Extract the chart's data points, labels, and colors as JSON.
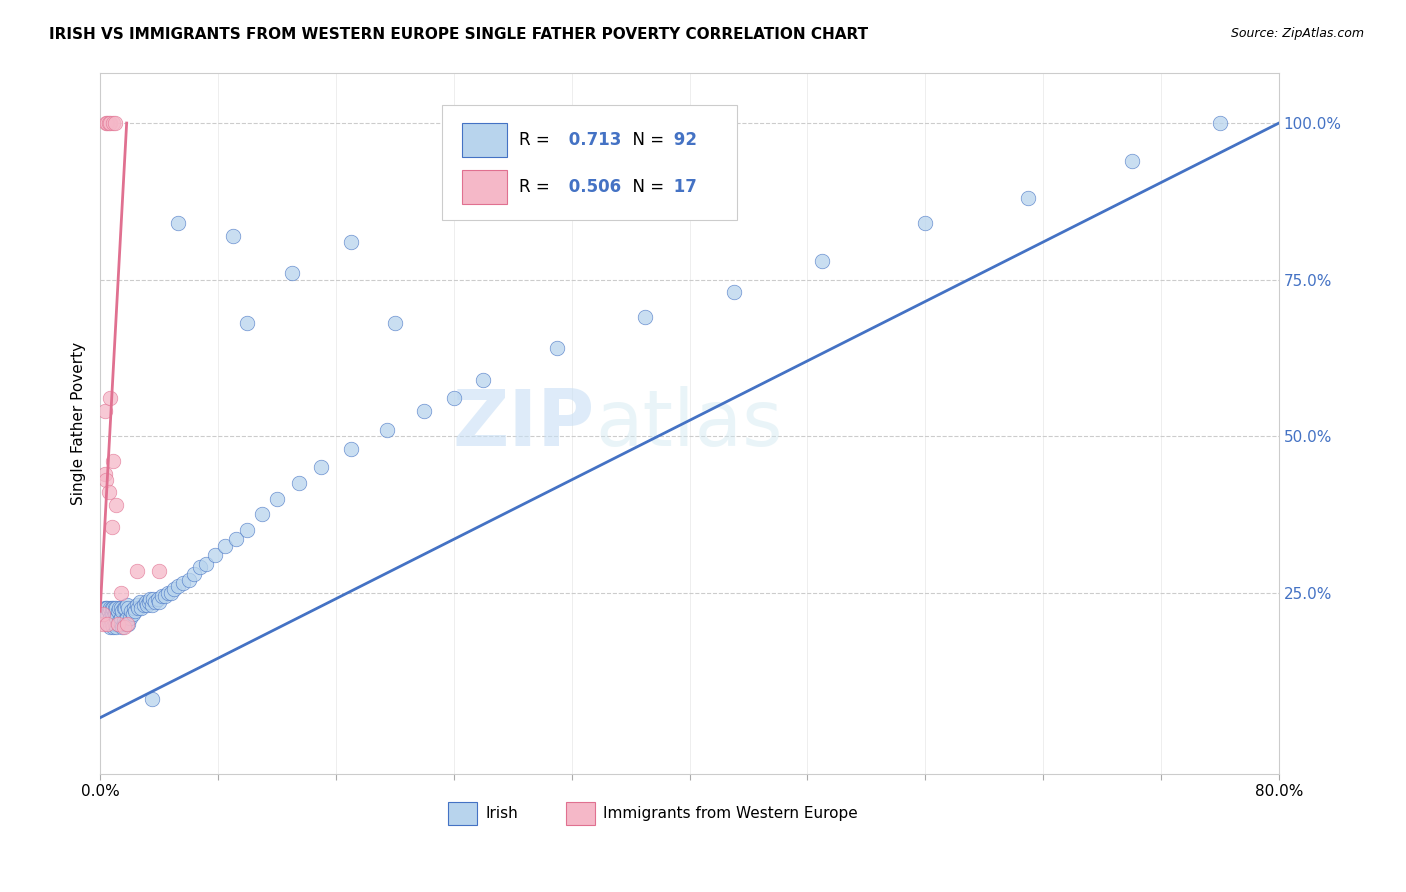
{
  "title": "IRISH VS IMMIGRANTS FROM WESTERN EUROPE SINGLE FATHER POVERTY CORRELATION CHART",
  "source": "Source: ZipAtlas.com",
  "ylabel": "Single Father Poverty",
  "ytick_labels": [
    "25.0%",
    "50.0%",
    "75.0%",
    "100.0%"
  ],
  "ytick_values": [
    0.25,
    0.5,
    0.75,
    1.0
  ],
  "xmin": 0.0,
  "xmax": 0.8,
  "ymin": -0.04,
  "ymax": 1.08,
  "blue_R": "0.713",
  "blue_N": "92",
  "pink_R": "0.506",
  "pink_N": "17",
  "blue_color": "#b8d4ed",
  "pink_color": "#f5b8c8",
  "blue_line_color": "#4472c4",
  "pink_line_color": "#e07090",
  "legend_label_blue": "Irish",
  "legend_label_pink": "Immigrants from Western Europe",
  "watermark_zip": "ZIP",
  "watermark_atlas": "atlas",
  "title_fontsize": 11,
  "blue_scatter_x": [
    0.002,
    0.003,
    0.003,
    0.004,
    0.004,
    0.005,
    0.005,
    0.005,
    0.006,
    0.006,
    0.007,
    0.007,
    0.007,
    0.008,
    0.008,
    0.008,
    0.009,
    0.009,
    0.009,
    0.01,
    0.01,
    0.01,
    0.011,
    0.011,
    0.011,
    0.012,
    0.012,
    0.013,
    0.013,
    0.014,
    0.014,
    0.015,
    0.015,
    0.016,
    0.016,
    0.017,
    0.017,
    0.018,
    0.018,
    0.019,
    0.019,
    0.02,
    0.021,
    0.022,
    0.023,
    0.024,
    0.025,
    0.026,
    0.027,
    0.028,
    0.03,
    0.031,
    0.032,
    0.033,
    0.034,
    0.035,
    0.036,
    0.037,
    0.039,
    0.04,
    0.042,
    0.044,
    0.046,
    0.048,
    0.05,
    0.053,
    0.056,
    0.06,
    0.064,
    0.068,
    0.072,
    0.078,
    0.085,
    0.092,
    0.1,
    0.11,
    0.12,
    0.135,
    0.15,
    0.17,
    0.195,
    0.22,
    0.24,
    0.26,
    0.31,
    0.37,
    0.43,
    0.49,
    0.56,
    0.63,
    0.7,
    0.76
  ],
  "blue_scatter_y": [
    0.215,
    0.22,
    0.225,
    0.215,
    0.225,
    0.2,
    0.215,
    0.225,
    0.205,
    0.22,
    0.195,
    0.21,
    0.225,
    0.2,
    0.215,
    0.225,
    0.195,
    0.21,
    0.225,
    0.2,
    0.215,
    0.225,
    0.195,
    0.21,
    0.225,
    0.2,
    0.22,
    0.205,
    0.225,
    0.21,
    0.225,
    0.195,
    0.22,
    0.205,
    0.225,
    0.2,
    0.225,
    0.21,
    0.23,
    0.2,
    0.225,
    0.21,
    0.22,
    0.215,
    0.225,
    0.22,
    0.23,
    0.225,
    0.235,
    0.225,
    0.23,
    0.235,
    0.23,
    0.235,
    0.24,
    0.23,
    0.24,
    0.235,
    0.24,
    0.235,
    0.245,
    0.245,
    0.25,
    0.25,
    0.255,
    0.26,
    0.265,
    0.27,
    0.28,
    0.29,
    0.295,
    0.31,
    0.325,
    0.335,
    0.35,
    0.375,
    0.4,
    0.425,
    0.45,
    0.48,
    0.51,
    0.54,
    0.56,
    0.59,
    0.64,
    0.69,
    0.73,
    0.78,
    0.84,
    0.88,
    0.94,
    1.0
  ],
  "blue_outlier_x": [
    0.053,
    0.09,
    0.1,
    0.13,
    0.17,
    0.2,
    0.035
  ],
  "blue_outlier_y": [
    0.84,
    0.82,
    0.68,
    0.76,
    0.81,
    0.68,
    0.08
  ],
  "pink_scatter_x": [
    0.002,
    0.002,
    0.003,
    0.003,
    0.004,
    0.005,
    0.006,
    0.007,
    0.008,
    0.009,
    0.011,
    0.012,
    0.014,
    0.016,
    0.018,
    0.025,
    0.04
  ],
  "pink_scatter_y": [
    0.2,
    0.215,
    0.44,
    0.54,
    0.43,
    0.2,
    0.41,
    0.56,
    0.355,
    0.46,
    0.39,
    0.2,
    0.25,
    0.195,
    0.2,
    0.285,
    0.285
  ],
  "pink_top_x": [
    0.004,
    0.005,
    0.006,
    0.007,
    0.009,
    0.01
  ],
  "pink_top_y": [
    1.0,
    1.0,
    1.0,
    1.0,
    1.0,
    1.0
  ],
  "blue_line_x": [
    0.0,
    0.8
  ],
  "blue_line_y": [
    0.05,
    1.0
  ],
  "pink_line_x": [
    0.0,
    0.018
  ],
  "pink_line_y": [
    0.22,
    1.0
  ]
}
